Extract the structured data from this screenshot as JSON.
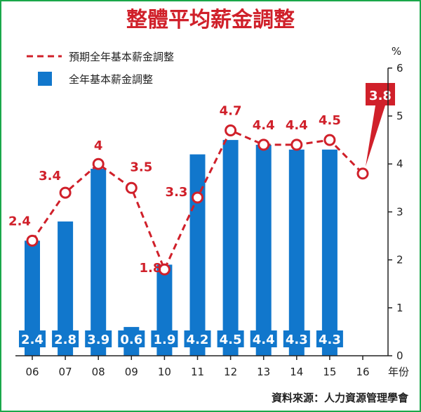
{
  "chart_data": {
    "type": "bar",
    "title": "整體平均薪金調整",
    "categories": [
      "06",
      "07",
      "08",
      "09",
      "10",
      "11",
      "12",
      "13",
      "14",
      "15",
      "16"
    ],
    "xlabel": "年份",
    "ylabel": "%",
    "ylim": [
      0,
      6
    ],
    "yticks": [
      0,
      1,
      2,
      3,
      4,
      5,
      6
    ],
    "grid": false,
    "legend_position": "top-left",
    "series": [
      {
        "name": "全年基本薪金調整",
        "type": "bar",
        "color": "#1177cc",
        "values": [
          2.4,
          2.8,
          3.9,
          0.6,
          1.9,
          4.2,
          4.5,
          4.4,
          4.3,
          4.3,
          null
        ],
        "labels": [
          "2.4",
          "2.8",
          "3.9",
          "0.6",
          "1.9",
          "4.2",
          "4.5",
          "4.4",
          "4.3",
          "4.3",
          ""
        ]
      },
      {
        "name": "預期全年基本薪金調整",
        "type": "line",
        "style": "dashed",
        "color": "#d0202a",
        "values": [
          2.4,
          3.4,
          4,
          3.5,
          1.8,
          3.3,
          4.7,
          4.4,
          4.4,
          4.5,
          3.8
        ],
        "labels": [
          "2.4",
          "3.4",
          "4",
          "3.5",
          "1.8",
          "3.3",
          "4.7",
          "4.4",
          "4.4",
          "4.5",
          "3.8"
        ]
      }
    ],
    "highlight": {
      "category": "16",
      "label": "3.8",
      "color": "#d0202a"
    },
    "source": "資料來源：人力資源管理學會"
  }
}
